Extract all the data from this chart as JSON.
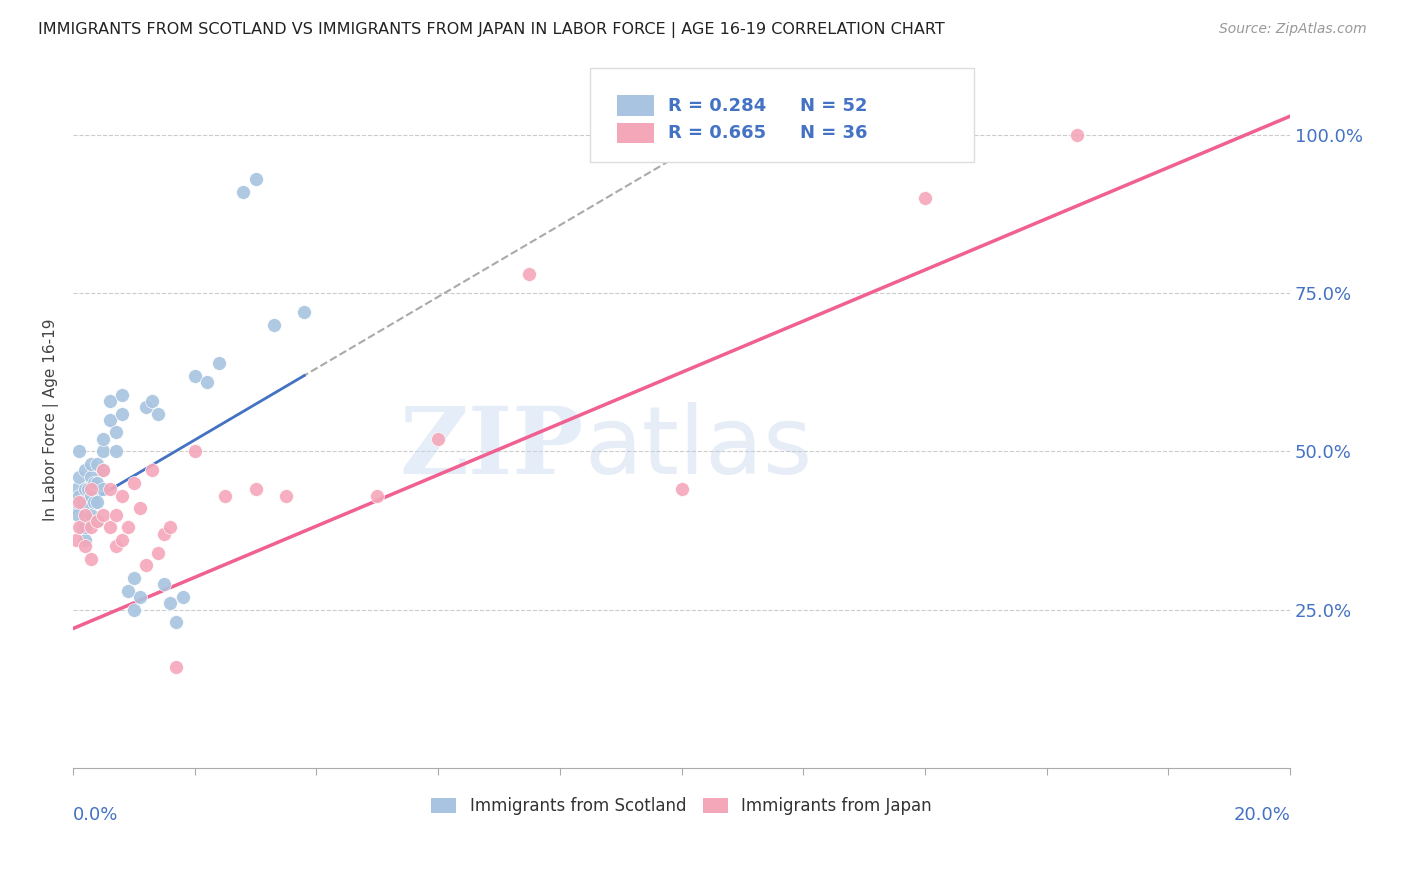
{
  "title": "IMMIGRANTS FROM SCOTLAND VS IMMIGRANTS FROM JAPAN IN LABOR FORCE | AGE 16-19 CORRELATION CHART",
  "source": "Source: ZipAtlas.com",
  "ylabel": "In Labor Force | Age 16-19",
  "right_yticklabels": [
    "25.0%",
    "50.0%",
    "75.0%",
    "100.0%"
  ],
  "right_ytick_vals": [
    0.25,
    0.5,
    0.75,
    1.0
  ],
  "legend_scotland_r": "R = 0.284",
  "legend_scotland_n": "N = 52",
  "legend_japan_r": "R = 0.665",
  "legend_japan_n": "N = 36",
  "legend_bottom_scotland": "Immigrants from Scotland",
  "legend_bottom_japan": "Immigrants from Japan",
  "scotland_color": "#a8c4e0",
  "japan_color": "#f4a7b9",
  "scotland_line_color": "#4472c4",
  "japan_line_color": "#f06090",
  "watermark_zip": "ZIP",
  "watermark_atlas": "atlas",
  "xmin": 0.0,
  "xmax": 0.2,
  "ymin": 0.0,
  "ymax": 1.1,
  "scotland_x": [
    0.0005,
    0.0005,
    0.0008,
    0.001,
    0.001,
    0.001,
    0.0015,
    0.0015,
    0.002,
    0.002,
    0.002,
    0.002,
    0.0025,
    0.0025,
    0.003,
    0.003,
    0.003,
    0.003,
    0.0035,
    0.0035,
    0.004,
    0.004,
    0.004,
    0.004,
    0.005,
    0.005,
    0.005,
    0.005,
    0.006,
    0.006,
    0.007,
    0.007,
    0.008,
    0.008,
    0.009,
    0.01,
    0.01,
    0.011,
    0.012,
    0.013,
    0.014,
    0.015,
    0.016,
    0.017,
    0.018,
    0.02,
    0.022,
    0.024,
    0.028,
    0.03,
    0.033,
    0.038
  ],
  "scotland_y": [
    0.42,
    0.44,
    0.4,
    0.43,
    0.46,
    0.5,
    0.38,
    0.42,
    0.44,
    0.47,
    0.36,
    0.38,
    0.42,
    0.44,
    0.4,
    0.43,
    0.46,
    0.48,
    0.42,
    0.45,
    0.39,
    0.42,
    0.45,
    0.48,
    0.44,
    0.47,
    0.5,
    0.52,
    0.55,
    0.58,
    0.5,
    0.53,
    0.56,
    0.59,
    0.28,
    0.25,
    0.3,
    0.27,
    0.57,
    0.58,
    0.56,
    0.29,
    0.26,
    0.23,
    0.27,
    0.62,
    0.61,
    0.64,
    0.91,
    0.93,
    0.7,
    0.72
  ],
  "japan_x": [
    0.0005,
    0.001,
    0.001,
    0.002,
    0.002,
    0.003,
    0.003,
    0.003,
    0.004,
    0.005,
    0.005,
    0.006,
    0.006,
    0.007,
    0.007,
    0.008,
    0.008,
    0.009,
    0.01,
    0.011,
    0.012,
    0.013,
    0.014,
    0.015,
    0.016,
    0.017,
    0.02,
    0.025,
    0.03,
    0.035,
    0.05,
    0.06,
    0.075,
    0.1,
    0.14,
    0.165
  ],
  "japan_y": [
    0.36,
    0.38,
    0.42,
    0.35,
    0.4,
    0.33,
    0.38,
    0.44,
    0.39,
    0.4,
    0.47,
    0.38,
    0.44,
    0.35,
    0.4,
    0.36,
    0.43,
    0.38,
    0.45,
    0.41,
    0.32,
    0.47,
    0.34,
    0.37,
    0.38,
    0.16,
    0.5,
    0.43,
    0.44,
    0.43,
    0.43,
    0.52,
    0.78,
    0.44,
    0.9,
    1.0
  ],
  "japan_line_x0": 0.0,
  "japan_line_y0": 0.22,
  "japan_line_x1": 0.2,
  "japan_line_y1": 1.03,
  "scotland_line_x0": 0.0,
  "scotland_line_y0": 0.405,
  "scotland_line_x1": 0.038,
  "scotland_line_y1": 0.62
}
